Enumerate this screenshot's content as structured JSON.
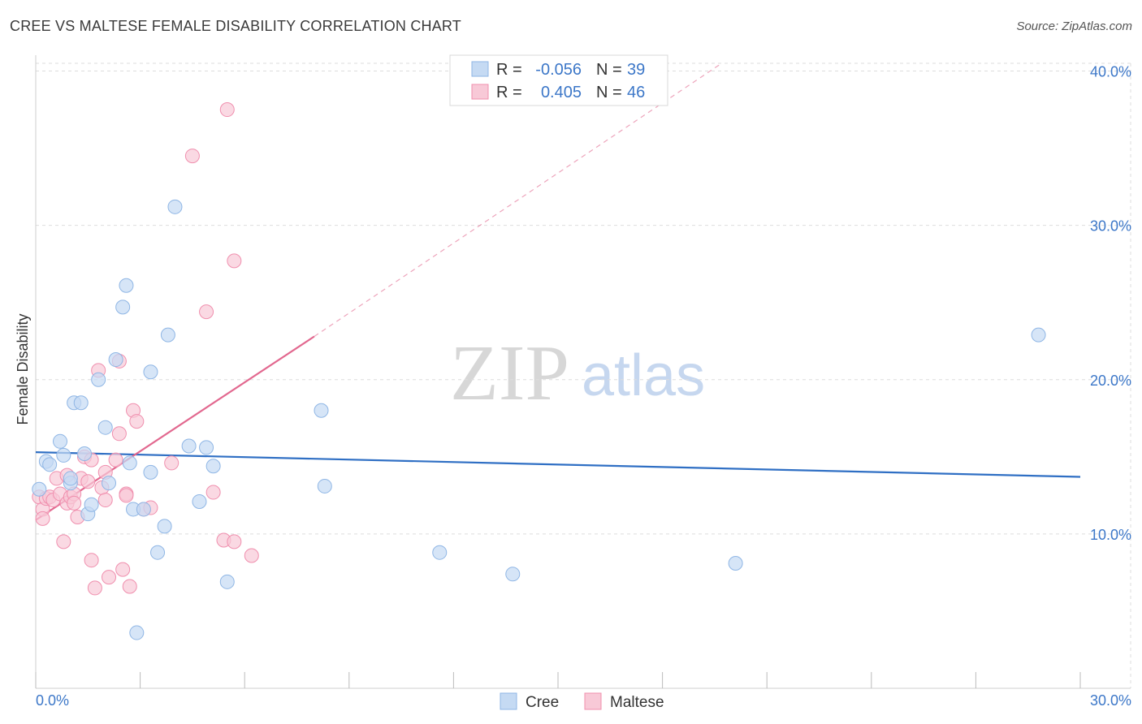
{
  "title": "CREE VS MALTESE FEMALE DISABILITY CORRELATION CHART",
  "source": "Source: ZipAtlas.com",
  "watermark": {
    "zip": "ZIP",
    "atlas": "atlas"
  },
  "legend": {
    "rows": [
      {
        "r_label": "R =",
        "r_value": "-0.056",
        "n_label": "N =",
        "n_value": "39"
      },
      {
        "r_label": "R =",
        "r_value": "0.405",
        "n_label": "N =",
        "n_value": "46"
      }
    ]
  },
  "colors": {
    "cree_fill": "#c5daf3",
    "cree_stroke": "#8fb6e5",
    "cree_line": "#2f6fc4",
    "maltese_fill": "#f8c9d7",
    "maltese_stroke": "#f08fae",
    "maltese_line": "#e2688f",
    "axis_label": "#3c77c8",
    "grid": "#dddddd"
  },
  "chart_data": {
    "type": "scatter",
    "title": "CREE VS MALTESE FEMALE DISABILITY CORRELATION CHART",
    "xlabel": "",
    "ylabel": "Female Disability",
    "xlim": [
      0,
      30
    ],
    "ylim": [
      0,
      40.5
    ],
    "x_tick_labels": [
      "0.0%",
      "30.0%"
    ],
    "y_tick_labels": [
      "10.0%",
      "20.0%",
      "30.0%",
      "40.0%"
    ],
    "y_ticks": [
      10,
      20,
      30,
      40
    ],
    "legend_position": "top-center",
    "grid": true,
    "series": [
      {
        "name": "Cree",
        "r": -0.056,
        "n": 39,
        "trend": {
          "x0": 0,
          "y0": 15.3,
          "x1": 30,
          "y1": 13.7
        },
        "points": [
          [
            0.1,
            12.9
          ],
          [
            0.3,
            14.7
          ],
          [
            0.4,
            14.5
          ],
          [
            0.7,
            16.0
          ],
          [
            0.8,
            15.1
          ],
          [
            1.0,
            13.3
          ],
          [
            1.1,
            18.5
          ],
          [
            1.3,
            18.5
          ],
          [
            1.4,
            15.2
          ],
          [
            1.5,
            11.3
          ],
          [
            1.6,
            11.9
          ],
          [
            1.8,
            20.0
          ],
          [
            2.0,
            16.9
          ],
          [
            2.1,
            13.3
          ],
          [
            2.3,
            21.3
          ],
          [
            2.5,
            24.7
          ],
          [
            2.6,
            26.1
          ],
          [
            2.7,
            14.6
          ],
          [
            2.8,
            11.6
          ],
          [
            2.9,
            3.6
          ],
          [
            3.1,
            11.6
          ],
          [
            3.3,
            20.5
          ],
          [
            3.3,
            14.0
          ],
          [
            3.5,
            8.8
          ],
          [
            3.7,
            10.5
          ],
          [
            3.8,
            22.9
          ],
          [
            4.0,
            31.2
          ],
          [
            4.4,
            15.7
          ],
          [
            4.7,
            12.1
          ],
          [
            4.9,
            15.6
          ],
          [
            5.1,
            14.4
          ],
          [
            5.5,
            6.9
          ],
          [
            8.2,
            18.0
          ],
          [
            8.3,
            13.1
          ],
          [
            11.6,
            8.8
          ],
          [
            13.7,
            7.4
          ],
          [
            20.1,
            8.1
          ],
          [
            28.8,
            22.9
          ],
          [
            1.0,
            13.6
          ]
        ]
      },
      {
        "name": "Maltese",
        "r": 0.405,
        "n": 46,
        "trend": {
          "x0": 0,
          "y0": 10.9,
          "x1": 8.0,
          "y1": 22.8
        },
        "trend_ext": {
          "x0": 8.0,
          "y0": 22.8,
          "x1": 19.7,
          "y1": 40.5
        },
        "points": [
          [
            0.1,
            12.4
          ],
          [
            0.2,
            11.6
          ],
          [
            0.3,
            12.3
          ],
          [
            0.4,
            12.4
          ],
          [
            0.5,
            12.2
          ],
          [
            0.6,
            13.6
          ],
          [
            0.7,
            12.6
          ],
          [
            0.8,
            9.5
          ],
          [
            0.9,
            12.0
          ],
          [
            1.0,
            12.4
          ],
          [
            1.1,
            12.6
          ],
          [
            1.2,
            11.1
          ],
          [
            1.3,
            13.6
          ],
          [
            1.4,
            15.0
          ],
          [
            1.5,
            13.4
          ],
          [
            1.6,
            14.8
          ],
          [
            1.6,
            8.3
          ],
          [
            1.7,
            6.5
          ],
          [
            1.8,
            20.6
          ],
          [
            1.9,
            13.0
          ],
          [
            2.0,
            12.2
          ],
          [
            2.0,
            14.0
          ],
          [
            2.1,
            7.2
          ],
          [
            2.3,
            14.8
          ],
          [
            2.4,
            21.2
          ],
          [
            2.4,
            16.5
          ],
          [
            2.5,
            7.7
          ],
          [
            2.6,
            12.6
          ],
          [
            2.7,
            6.6
          ],
          [
            2.8,
            18.0
          ],
          [
            2.9,
            17.3
          ],
          [
            3.1,
            11.6
          ],
          [
            3.3,
            11.7
          ],
          [
            3.9,
            14.6
          ],
          [
            4.5,
            34.5
          ],
          [
            4.9,
            24.4
          ],
          [
            5.1,
            12.7
          ],
          [
            5.4,
            9.6
          ],
          [
            5.5,
            37.5
          ],
          [
            5.7,
            9.5
          ],
          [
            5.7,
            27.7
          ],
          [
            6.2,
            8.6
          ],
          [
            0.2,
            11.0
          ],
          [
            2.6,
            12.5
          ],
          [
            1.1,
            12.0
          ],
          [
            0.9,
            13.8
          ]
        ]
      }
    ]
  },
  "bottom_legend": [
    "Cree",
    "Maltese"
  ]
}
